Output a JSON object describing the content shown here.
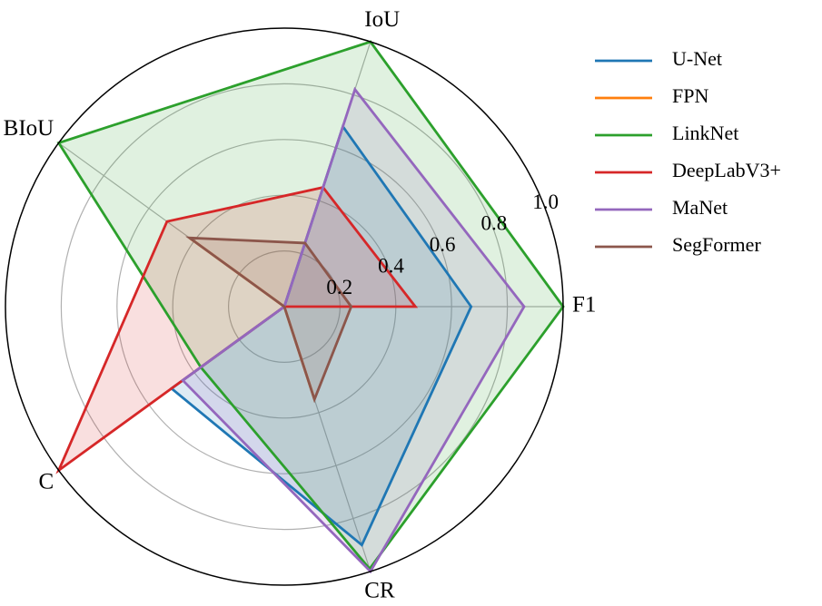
{
  "chart_data": {
    "type": "radar",
    "axes": [
      "F1",
      "IoU",
      "BIoU",
      "C",
      "CR"
    ],
    "rmax": 1.0,
    "rticks": [
      0.2,
      0.4,
      0.6,
      0.8,
      1.0
    ],
    "rtick_labels": [
      "0.2",
      "0.4",
      "0.6",
      "0.8",
      "1.0"
    ],
    "grid": true,
    "legend_position": "right",
    "series": [
      {
        "name": "U-Net",
        "color": "#1f77b4",
        "values": [
          0.67,
          0.68,
          0.0,
          0.5,
          0.9
        ]
      },
      {
        "name": "FPN",
        "color": "#ff7f0e",
        "values": [
          0.0,
          0.0,
          0.42,
          0.0,
          0.35
        ]
      },
      {
        "name": "LinkNet",
        "color": "#2ca02c",
        "values": [
          1.0,
          1.0,
          1.0,
          0.37,
          0.99
        ]
      },
      {
        "name": "DeepLabV3+",
        "color": "#d62728",
        "values": [
          0.47,
          0.45,
          0.52,
          1.0,
          0.0
        ]
      },
      {
        "name": "MaNet",
        "color": "#9467bd",
        "values": [
          0.86,
          0.82,
          0.0,
          0.45,
          1.0
        ]
      },
      {
        "name": "SegFormer",
        "color": "#8c564b",
        "values": [
          0.24,
          0.24,
          0.42,
          0.0,
          0.35
        ]
      }
    ]
  }
}
